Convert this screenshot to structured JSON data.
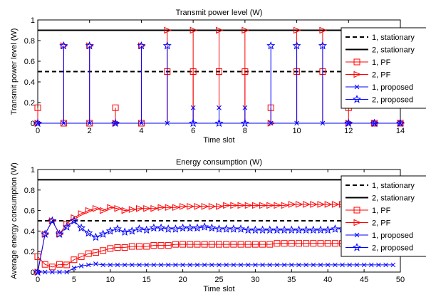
{
  "chart_data": [
    {
      "type": "line",
      "title": "Transmit power level (W)",
      "xlabel": "Time slot",
      "ylabel": "Transmit power level (W)",
      "xlim": [
        0,
        14
      ],
      "ylim": [
        0,
        1
      ],
      "xticks": [
        0,
        2,
        4,
        6,
        8,
        10,
        12,
        14
      ],
      "yticks": [
        0,
        0.2,
        0.4,
        0.6,
        0.8,
        1
      ],
      "grid": false,
      "legend_position": "right",
      "x": [
        0,
        1,
        2,
        3,
        4,
        5,
        6,
        7,
        8,
        9,
        10,
        11,
        12,
        13,
        14
      ],
      "series": [
        {
          "name": "1, stationary",
          "style": "dashed",
          "color": "#000000",
          "values": [
            0.5,
            0.5,
            0.5,
            0.5,
            0.5,
            0.5,
            0.5,
            0.5,
            0.5,
            0.5,
            0.5,
            0.5,
            0.5,
            0.5,
            0.5
          ]
        },
        {
          "name": "2, stationary",
          "style": "solid",
          "color": "#000000",
          "values": [
            0.9,
            0.9,
            0.9,
            0.9,
            0.9,
            0.9,
            0.9,
            0.9,
            0.9,
            0.9,
            0.9,
            0.9,
            0.9,
            0.9,
            0.9
          ]
        },
        {
          "name": "1, PF",
          "style": "stem",
          "marker": "square",
          "color": "#ff0000",
          "values": [
            0.15,
            0,
            0,
            0.15,
            0,
            0.5,
            0.5,
            0.5,
            0.5,
            0.15,
            0.5,
            0.5,
            0.15,
            0,
            0
          ]
        },
        {
          "name": "2, PF",
          "style": "stem",
          "marker": "triangle-right",
          "color": "#ff0000",
          "values": [
            0,
            0.75,
            0.75,
            0,
            0.75,
            0.9,
            0.9,
            0.9,
            0.9,
            0,
            0.9,
            0.9,
            0,
            0,
            0
          ]
        },
        {
          "name": "1, proposed",
          "style": "stem",
          "marker": "x",
          "color": "#0000ff",
          "values": [
            0,
            0,
            0,
            0,
            0,
            0,
            0.15,
            0.15,
            0.15,
            0,
            0,
            0,
            0,
            0,
            0
          ]
        },
        {
          "name": "2, proposed",
          "style": "stem",
          "marker": "star",
          "color": "#0000ff",
          "values": [
            0,
            0.75,
            0.75,
            0,
            0.75,
            0.75,
            0,
            0,
            0,
            0.75,
            0.75,
            0.75,
            0,
            0,
            0
          ]
        }
      ]
    },
    {
      "type": "line",
      "title": "Energy consumption (W)",
      "xlabel": "Time slot",
      "ylabel": "Average energy consumption (W)",
      "xlim": [
        0,
        50
      ],
      "ylim": [
        0,
        1
      ],
      "xticks": [
        0,
        5,
        10,
        15,
        20,
        25,
        30,
        35,
        40,
        45,
        50
      ],
      "yticks": [
        0,
        0.2,
        0.4,
        0.6,
        0.8,
        1
      ],
      "grid": false,
      "legend_position": "right",
      "x": [
        0,
        1,
        2,
        3,
        4,
        5,
        6,
        7,
        8,
        9,
        10,
        11,
        12,
        13,
        14,
        15,
        16,
        17,
        18,
        19,
        20,
        21,
        22,
        23,
        24,
        25,
        26,
        27,
        28,
        29,
        30,
        31,
        32,
        33,
        34,
        35,
        36,
        37,
        38,
        39,
        40,
        41,
        42,
        43,
        44,
        45,
        46,
        47,
        48,
        49
      ],
      "series": [
        {
          "name": "1, stationary",
          "style": "dashed",
          "color": "#000000",
          "values": [
            0.5,
            0.5,
            0.5,
            0.5,
            0.5,
            0.5,
            0.5,
            0.5,
            0.5,
            0.5,
            0.5,
            0.5,
            0.5,
            0.5,
            0.5,
            0.5,
            0.5,
            0.5,
            0.5,
            0.5,
            0.5,
            0.5,
            0.5,
            0.5,
            0.5,
            0.5,
            0.5,
            0.5,
            0.5,
            0.5,
            0.5,
            0.5,
            0.5,
            0.5,
            0.5,
            0.5,
            0.5,
            0.5,
            0.5,
            0.5,
            0.5,
            0.5,
            0.5,
            0.5,
            0.5,
            0.5,
            0.5,
            0.5,
            0.5,
            0.5
          ]
        },
        {
          "name": "2, stationary",
          "style": "solid",
          "color": "#000000",
          "values": [
            0.9,
            0.9,
            0.9,
            0.9,
            0.9,
            0.9,
            0.9,
            0.9,
            0.9,
            0.9,
            0.9,
            0.9,
            0.9,
            0.9,
            0.9,
            0.9,
            0.9,
            0.9,
            0.9,
            0.9,
            0.9,
            0.9,
            0.9,
            0.9,
            0.9,
            0.9,
            0.9,
            0.9,
            0.9,
            0.9,
            0.9,
            0.9,
            0.9,
            0.9,
            0.9,
            0.9,
            0.9,
            0.9,
            0.9,
            0.9,
            0.9,
            0.9,
            0.9,
            0.9,
            0.9,
            0.9,
            0.9,
            0.9,
            0.9,
            0.9
          ]
        },
        {
          "name": "1, PF",
          "style": "solid",
          "marker": "square",
          "color": "#ff0000",
          "values": [
            0.15,
            0.075,
            0.05,
            0.075,
            0.07,
            0.12,
            0.15,
            0.18,
            0.19,
            0.21,
            0.23,
            0.24,
            0.24,
            0.25,
            0.25,
            0.25,
            0.26,
            0.26,
            0.26,
            0.27,
            0.27,
            0.27,
            0.27,
            0.27,
            0.27,
            0.27,
            0.27,
            0.27,
            0.27,
            0.27,
            0.27,
            0.27,
            0.27,
            0.28,
            0.28,
            0.28,
            0.28,
            0.28,
            0.28,
            0.28,
            0.28,
            0.28,
            0.28,
            0.28,
            0.28,
            0.28,
            0.28,
            0.28,
            0.28,
            0.28
          ]
        },
        {
          "name": "2, PF",
          "style": "solid",
          "marker": "triangle-right",
          "color": "#ff0000",
          "values": [
            0,
            0.37,
            0.5,
            0.37,
            0.47,
            0.53,
            0.57,
            0.6,
            0.62,
            0.6,
            0.63,
            0.62,
            0.6,
            0.61,
            0.62,
            0.62,
            0.62,
            0.63,
            0.63,
            0.63,
            0.64,
            0.64,
            0.64,
            0.64,
            0.64,
            0.64,
            0.65,
            0.65,
            0.65,
            0.65,
            0.65,
            0.65,
            0.65,
            0.65,
            0.65,
            0.66,
            0.66,
            0.66,
            0.66,
            0.66,
            0.66,
            0.66,
            0.66,
            0.66,
            0.66,
            0.66,
            0.66,
            0.66,
            0.66,
            0.66
          ]
        },
        {
          "name": "1, proposed",
          "style": "solid",
          "marker": "x",
          "color": "#0000ff",
          "values": [
            0,
            0,
            0,
            0,
            0,
            0.04,
            0.06,
            0.07,
            0.08,
            0.07,
            0.07,
            0.07,
            0.07,
            0.07,
            0.07,
            0.07,
            0.07,
            0.07,
            0.07,
            0.07,
            0.07,
            0.07,
            0.07,
            0.07,
            0.07,
            0.07,
            0.07,
            0.07,
            0.07,
            0.07,
            0.07,
            0.07,
            0.07,
            0.07,
            0.07,
            0.07,
            0.07,
            0.07,
            0.07,
            0.07,
            0.07,
            0.07,
            0.07,
            0.07,
            0.07,
            0.07,
            0.07,
            0.07,
            0.07,
            0.07
          ]
        },
        {
          "name": "2, proposed",
          "style": "solid",
          "marker": "star",
          "color": "#0000ff",
          "values": [
            0,
            0.37,
            0.5,
            0.37,
            0.44,
            0.5,
            0.43,
            0.38,
            0.34,
            0.37,
            0.4,
            0.42,
            0.39,
            0.4,
            0.42,
            0.41,
            0.43,
            0.43,
            0.42,
            0.42,
            0.43,
            0.43,
            0.43,
            0.44,
            0.43,
            0.42,
            0.42,
            0.42,
            0.42,
            0.41,
            0.41,
            0.41,
            0.41,
            0.41,
            0.41,
            0.41,
            0.41,
            0.41,
            0.41,
            0.41,
            0.41,
            0.42,
            0.42,
            0.42,
            0.42,
            0.42,
            0.42,
            0.42,
            0.42,
            0.42
          ]
        }
      ]
    }
  ]
}
